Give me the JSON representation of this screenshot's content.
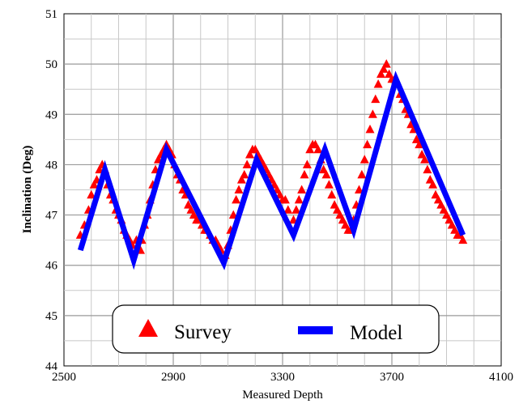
{
  "chart_data": {
    "type": "scatter",
    "title": "",
    "xlabel": "Measured Depth",
    "ylabel": "Inclination (Deg)",
    "xlim": [
      2500,
      4100
    ],
    "ylim": [
      44,
      51
    ],
    "xticks": [
      "2500",
      "2900",
      "3300",
      "3700",
      "4100"
    ],
    "yticks": [
      "44",
      "45",
      "46",
      "47",
      "48",
      "49",
      "50",
      "51"
    ],
    "grid": true,
    "legend_position": "bottom-center",
    "series": [
      {
        "name": "Survey",
        "kind": "markers",
        "marker": "triangle",
        "color": "#ff0000",
        "points": [
          [
            2560,
            46.6
          ],
          [
            2575,
            46.8
          ],
          [
            2590,
            47.1
          ],
          [
            2600,
            47.4
          ],
          [
            2610,
            47.6
          ],
          [
            2620,
            47.7
          ],
          [
            2630,
            47.9
          ],
          [
            2640,
            48.0
          ],
          [
            2650,
            47.9
          ],
          [
            2660,
            47.6
          ],
          [
            2670,
            47.4
          ],
          [
            2680,
            47.3
          ],
          [
            2690,
            47.1
          ],
          [
            2700,
            47.0
          ],
          [
            2710,
            46.9
          ],
          [
            2720,
            46.7
          ],
          [
            2730,
            46.6
          ],
          [
            2740,
            46.5
          ],
          [
            2750,
            46.4
          ],
          [
            2765,
            46.5
          ],
          [
            2780,
            46.3
          ],
          [
            2785,
            46.5
          ],
          [
            2795,
            46.8
          ],
          [
            2805,
            47.0
          ],
          [
            2815,
            47.3
          ],
          [
            2825,
            47.6
          ],
          [
            2835,
            47.9
          ],
          [
            2845,
            48.1
          ],
          [
            2855,
            48.2
          ],
          [
            2865,
            48.3
          ],
          [
            2875,
            48.4
          ],
          [
            2885,
            48.3
          ],
          [
            2895,
            48.2
          ],
          [
            2905,
            48.0
          ],
          [
            2915,
            47.8
          ],
          [
            2925,
            47.7
          ],
          [
            2935,
            47.5
          ],
          [
            2945,
            47.4
          ],
          [
            2955,
            47.2
          ],
          [
            2965,
            47.1
          ],
          [
            2975,
            47.0
          ],
          [
            2985,
            46.9
          ],
          [
            2995,
            46.9
          ],
          [
            3005,
            46.8
          ],
          [
            3015,
            46.7
          ],
          [
            3025,
            46.7
          ],
          [
            3035,
            46.6
          ],
          [
            3045,
            46.5
          ],
          [
            3055,
            46.5
          ],
          [
            3065,
            46.4
          ],
          [
            3075,
            46.3
          ],
          [
            3090,
            46.2
          ],
          [
            3100,
            46.4
          ],
          [
            3110,
            46.7
          ],
          [
            3120,
            47.0
          ],
          [
            3130,
            47.3
          ],
          [
            3140,
            47.5
          ],
          [
            3150,
            47.7
          ],
          [
            3160,
            47.8
          ],
          [
            3170,
            48.0
          ],
          [
            3180,
            48.2
          ],
          [
            3190,
            48.3
          ],
          [
            3200,
            48.3
          ],
          [
            3210,
            48.2
          ],
          [
            3220,
            48.1
          ],
          [
            3230,
            48.0
          ],
          [
            3240,
            47.9
          ],
          [
            3250,
            47.8
          ],
          [
            3260,
            47.7
          ],
          [
            3270,
            47.6
          ],
          [
            3280,
            47.5
          ],
          [
            3290,
            47.4
          ],
          [
            3300,
            47.3
          ],
          [
            3310,
            47.3
          ],
          [
            3320,
            47.1
          ],
          [
            3340,
            46.9
          ],
          [
            3350,
            47.1
          ],
          [
            3360,
            47.3
          ],
          [
            3370,
            47.5
          ],
          [
            3380,
            47.8
          ],
          [
            3390,
            48.0
          ],
          [
            3400,
            48.3
          ],
          [
            3410,
            48.4
          ],
          [
            3420,
            48.4
          ],
          [
            3430,
            48.3
          ],
          [
            3440,
            48.1
          ],
          [
            3450,
            47.9
          ],
          [
            3460,
            47.8
          ],
          [
            3470,
            47.6
          ],
          [
            3480,
            47.4
          ],
          [
            3490,
            47.2
          ],
          [
            3500,
            47.1
          ],
          [
            3510,
            47.0
          ],
          [
            3520,
            46.9
          ],
          [
            3530,
            46.8
          ],
          [
            3540,
            46.7
          ],
          [
            3550,
            46.7
          ],
          [
            3560,
            46.9
          ],
          [
            3570,
            47.2
          ],
          [
            3580,
            47.5
          ],
          [
            3590,
            47.8
          ],
          [
            3600,
            48.1
          ],
          [
            3610,
            48.4
          ],
          [
            3620,
            48.7
          ],
          [
            3630,
            49.0
          ],
          [
            3640,
            49.3
          ],
          [
            3650,
            49.6
          ],
          [
            3660,
            49.8
          ],
          [
            3670,
            49.9
          ],
          [
            3680,
            50.0
          ],
          [
            3690,
            49.8
          ],
          [
            3700,
            49.7
          ],
          [
            3710,
            49.7
          ],
          [
            3720,
            49.6
          ],
          [
            3730,
            49.4
          ],
          [
            3740,
            49.3
          ],
          [
            3750,
            49.1
          ],
          [
            3760,
            49.0
          ],
          [
            3770,
            48.8
          ],
          [
            3780,
            48.7
          ],
          [
            3790,
            48.5
          ],
          [
            3800,
            48.4
          ],
          [
            3810,
            48.2
          ],
          [
            3820,
            48.1
          ],
          [
            3830,
            47.9
          ],
          [
            3840,
            47.7
          ],
          [
            3850,
            47.6
          ],
          [
            3860,
            47.4
          ],
          [
            3870,
            47.3
          ],
          [
            3880,
            47.2
          ],
          [
            3890,
            47.1
          ],
          [
            3900,
            47.0
          ],
          [
            3910,
            46.9
          ],
          [
            3920,
            46.8
          ],
          [
            3930,
            46.7
          ],
          [
            3940,
            46.6
          ],
          [
            3950,
            46.6
          ],
          [
            3960,
            46.5
          ]
        ]
      },
      {
        "name": "Model",
        "kind": "line",
        "color": "#0000ff",
        "points": [
          [
            2560,
            46.3
          ],
          [
            2650,
            47.9
          ],
          [
            2755,
            46.1
          ],
          [
            2875,
            48.3
          ],
          [
            3085,
            46.05
          ],
          [
            3205,
            48.1
          ],
          [
            3340,
            46.6
          ],
          [
            3455,
            48.3
          ],
          [
            3560,
            46.7
          ],
          [
            3715,
            49.7
          ],
          [
            3960,
            46.6
          ]
        ]
      }
    ]
  }
}
